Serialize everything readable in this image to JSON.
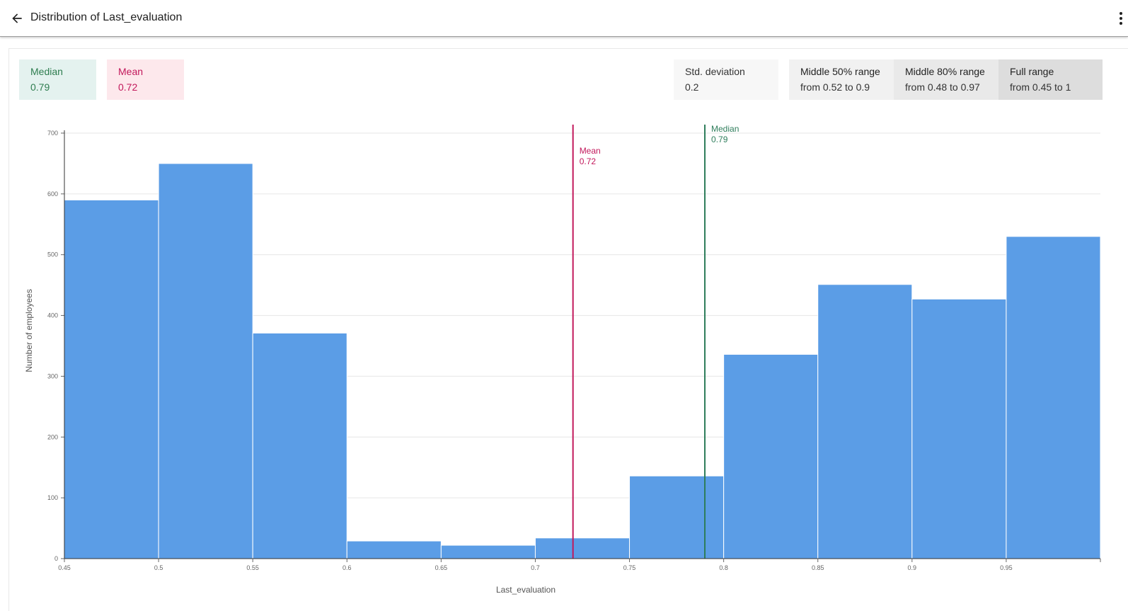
{
  "header": {
    "title": "Distribution of Last_evaluation",
    "back_icon": "arrow-left-icon",
    "more_icon": "more-vertical-icon"
  },
  "stats": {
    "median": {
      "label": "Median",
      "value": "0.79",
      "color": "#2e7d4f"
    },
    "mean": {
      "label": "Mean",
      "value": "0.72",
      "color": "#c2185b"
    },
    "std": {
      "label": "Std. deviation",
      "value": "0.2"
    },
    "middle50": {
      "label": "Middle 50% range",
      "value": "from 0.52 to 0.9"
    },
    "middle80": {
      "label": "Middle 80% range",
      "value": "from 0.48 to 0.97"
    },
    "full": {
      "label": "Full range",
      "value": "from 0.45 to 1"
    }
  },
  "chart_data": {
    "type": "bar",
    "xlabel": "Last_evaluation",
    "ylabel": "Number of employees",
    "xlim": [
      0.45,
      1.0
    ],
    "ylim": [
      0,
      700
    ],
    "yticks": [
      0,
      100,
      200,
      300,
      400,
      500,
      600,
      700
    ],
    "xticks": [
      {
        "v": 0.45,
        "label": "0.45"
      },
      {
        "v": 0.5,
        "label": "0.5"
      },
      {
        "v": 0.55,
        "label": "0.55"
      },
      {
        "v": 0.6,
        "label": "0.6"
      },
      {
        "v": 0.65,
        "label": "0.65"
      },
      {
        "v": 0.7,
        "label": "0.7"
      },
      {
        "v": 0.75,
        "label": "0.75"
      },
      {
        "v": 0.8,
        "label": "0.8"
      },
      {
        "v": 0.85,
        "label": "0.85"
      },
      {
        "v": 0.9,
        "label": "0.9"
      },
      {
        "v": 0.95,
        "label": "0.95"
      }
    ],
    "bins": [
      {
        "x0": 0.45,
        "x1": 0.5,
        "count": 590
      },
      {
        "x0": 0.5,
        "x1": 0.55,
        "count": 650
      },
      {
        "x0": 0.55,
        "x1": 0.6,
        "count": 371
      },
      {
        "x0": 0.6,
        "x1": 0.65,
        "count": 29
      },
      {
        "x0": 0.65,
        "x1": 0.7,
        "count": 22
      },
      {
        "x0": 0.7,
        "x1": 0.75,
        "count": 34
      },
      {
        "x0": 0.75,
        "x1": 0.8,
        "count": 136
      },
      {
        "x0": 0.8,
        "x1": 0.85,
        "count": 336
      },
      {
        "x0": 0.85,
        "x1": 0.9,
        "count": 451
      },
      {
        "x0": 0.9,
        "x1": 0.95,
        "count": 427
      },
      {
        "x0": 0.95,
        "x1": 1.0,
        "count": 530
      }
    ],
    "bar_color": "#5b9de6",
    "grid": true,
    "reference_lines": [
      {
        "name": "mean",
        "label": "Mean",
        "value": 0.72,
        "value_label": "0.72",
        "color": "#c2185b"
      },
      {
        "name": "median",
        "label": "Median",
        "value": 0.79,
        "value_label": "0.79",
        "color": "#2e7d5b"
      }
    ]
  }
}
